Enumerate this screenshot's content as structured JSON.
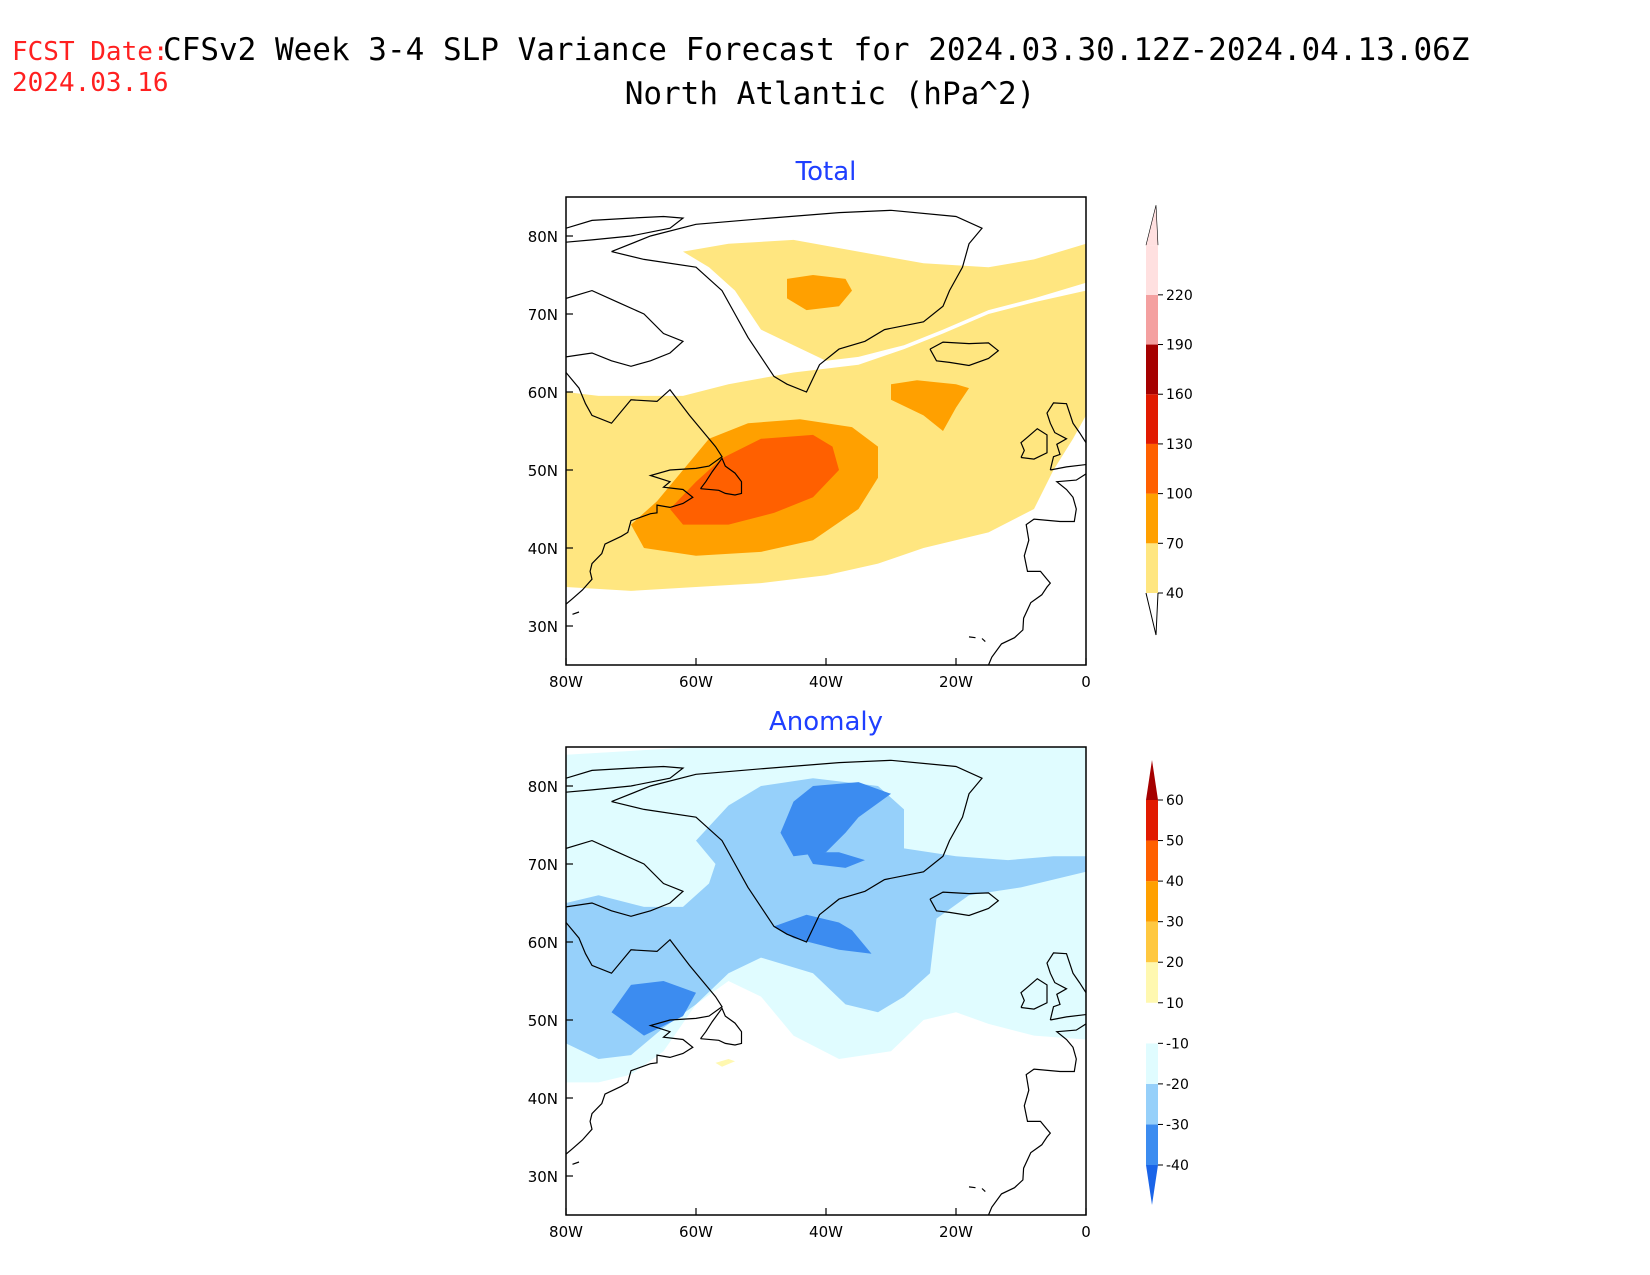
{
  "header": {
    "fcst_label": "FCST Date:",
    "fcst_date": "2024.03.16",
    "title": "CFSv2 Week 3-4 SLP Variance Forecast for 2024.03.30.12Z-2024.04.13.06Z",
    "subtitle": "North Atlantic (hPa^2)"
  },
  "colors": {
    "red_text": "#ff2020",
    "panel_title": "#1f3fff",
    "coast": "#000000"
  },
  "axes": {
    "lon_labels": [
      "80W",
      "60W",
      "40W",
      "20W",
      "0"
    ],
    "lon_values": [
      -80,
      -60,
      -40,
      -20,
      0
    ],
    "lat_labels": [
      "80N",
      "70N",
      "60N",
      "50N",
      "40N",
      "30N"
    ],
    "lat_values": [
      80,
      70,
      60,
      50,
      40,
      30
    ],
    "lon_range": [
      -80,
      0
    ],
    "lat_range": [
      25,
      85
    ]
  },
  "panels": [
    {
      "id": "total",
      "title": "Total",
      "colorbar": {
        "levels": [
          "40",
          "70",
          "100",
          "130",
          "160",
          "190",
          "220"
        ],
        "colors": [
          "#ffe680",
          "#ffa000",
          "#ff6000",
          "#e11a00",
          "#a50000",
          "#f4a0a0",
          "#ffe0e0"
        ]
      },
      "fields": [
        {
          "level": 40,
          "color": "#ffe680",
          "points": [
            [
              -80,
              60
            ],
            [
              -75,
              59.5
            ],
            [
              -70,
              59.5
            ],
            [
              -62,
              59.5
            ],
            [
              -55,
              61
            ],
            [
              -45,
              62.5
            ],
            [
              -40,
              63
            ],
            [
              -35,
              63.5
            ],
            [
              -28,
              65.5
            ],
            [
              -22,
              67.5
            ],
            [
              -15,
              70
            ],
            [
              -8,
              71.5
            ],
            [
              0,
              73
            ],
            [
              0,
              57
            ],
            [
              -2,
              54
            ],
            [
              -5,
              50
            ],
            [
              -8,
              45
            ],
            [
              -15,
              42
            ],
            [
              -25,
              40
            ],
            [
              -32,
              38
            ],
            [
              -40,
              36.5
            ],
            [
              -50,
              35.5
            ],
            [
              -60,
              35
            ],
            [
              -70,
              34.5
            ],
            [
              -80,
              35
            ]
          ]
        },
        {
          "level": 40,
          "color": "#ffe680",
          "points": [
            [
              -62,
              78
            ],
            [
              -55,
              79
            ],
            [
              -45,
              79.5
            ],
            [
              -35,
              78
            ],
            [
              -25,
              76.5
            ],
            [
              -15,
              76
            ],
            [
              -8,
              77
            ],
            [
              0,
              79
            ],
            [
              0,
              74
            ],
            [
              -8,
              72
            ],
            [
              -15,
              70.5
            ],
            [
              -22,
              68
            ],
            [
              -28,
              66
            ],
            [
              -35,
              64.5
            ],
            [
              -40,
              64
            ],
            [
              -45,
              66
            ],
            [
              -50,
              68
            ],
            [
              -54,
              73
            ],
            [
              -58,
              76
            ]
          ]
        },
        {
          "level": 70,
          "color": "#ffa000",
          "points": [
            [
              -70,
              43
            ],
            [
              -66,
              46
            ],
            [
              -62,
              50
            ],
            [
              -58,
              54
            ],
            [
              -52,
              56
            ],
            [
              -44,
              56.5
            ],
            [
              -36,
              55.5
            ],
            [
              -32,
              53
            ],
            [
              -32,
              49
            ],
            [
              -35,
              45
            ],
            [
              -42,
              41
            ],
            [
              -50,
              39.5
            ],
            [
              -60,
              39
            ],
            [
              -68,
              40
            ]
          ]
        },
        {
          "level": 70,
          "color": "#ffa000",
          "points": [
            [
              -46,
              74.5
            ],
            [
              -42,
              75
            ],
            [
              -37,
              74.5
            ],
            [
              -36,
              73
            ],
            [
              -38,
              71
            ],
            [
              -43,
              70.5
            ],
            [
              -46,
              72
            ]
          ]
        },
        {
          "level": 70,
          "color": "#ffa000",
          "points": [
            [
              -30,
              61
            ],
            [
              -26,
              61.5
            ],
            [
              -20,
              61
            ],
            [
              -18,
              60.5
            ],
            [
              -20,
              58
            ],
            [
              -22,
              55
            ],
            [
              -25,
              57
            ],
            [
              -30,
              59
            ]
          ]
        },
        {
          "level": 100,
          "color": "#ff6000",
          "points": [
            [
              -64,
              45
            ],
            [
              -60,
              48.5
            ],
            [
              -56,
              51.5
            ],
            [
              -50,
              54
            ],
            [
              -42,
              54.5
            ],
            [
              -39,
              53
            ],
            [
              -38,
              50
            ],
            [
              -42,
              46.5
            ],
            [
              -48,
              44.5
            ],
            [
              -55,
              43
            ],
            [
              -62,
              43
            ]
          ]
        }
      ]
    },
    {
      "id": "anomaly",
      "title": "Anomaly",
      "colorbar": {
        "levels": [
          "-40",
          "-30",
          "-20",
          "-10",
          "10",
          "20",
          "30",
          "40",
          "50",
          "60"
        ],
        "colors": [
          "#1a64e8",
          "#3c8cf0",
          "#96d0fa",
          "#e0fcff",
          "#ffffff",
          "#fff8b0",
          "#ffc840",
          "#ffa000",
          "#ff6000",
          "#e11a00",
          "#a50000"
        ]
      },
      "fields": [
        {
          "level": -10,
          "color": "#e0fcff",
          "points": [
            [
              -80,
              84
            ],
            [
              -60,
              85
            ],
            [
              -40,
              85
            ],
            [
              -20,
              85
            ],
            [
              0,
              85
            ],
            [
              0,
              47.5
            ],
            [
              -8,
              48
            ],
            [
              -15,
              49.5
            ],
            [
              -20,
              51
            ],
            [
              -25,
              50
            ],
            [
              -30,
              46
            ],
            [
              -38,
              45
            ],
            [
              -45,
              48
            ],
            [
              -50,
              53
            ],
            [
              -55,
              55
            ],
            [
              -60,
              52
            ],
            [
              -65,
              46
            ],
            [
              -70,
              43
            ],
            [
              -75,
              42
            ],
            [
              -80,
              42
            ]
          ]
        },
        {
          "level": -20,
          "color": "#96d0fa",
          "points": [
            [
              -80,
              65
            ],
            [
              -75,
              66
            ],
            [
              -68,
              64.5
            ],
            [
              -62,
              64.5
            ],
            [
              -58,
              67.5
            ],
            [
              -57,
              70
            ],
            [
              -60,
              73
            ],
            [
              -55,
              77.5
            ],
            [
              -50,
              80
            ],
            [
              -42,
              81
            ],
            [
              -32,
              80
            ],
            [
              -28,
              77
            ],
            [
              -28,
              72
            ],
            [
              -20,
              71
            ],
            [
              -12,
              70.5
            ],
            [
              -5,
              71
            ],
            [
              0,
              71
            ],
            [
              0,
              69
            ],
            [
              -10,
              67
            ],
            [
              -18,
              66
            ],
            [
              -23,
              63
            ],
            [
              -24,
              56
            ],
            [
              -28,
              53
            ],
            [
              -32,
              51
            ],
            [
              -37,
              52
            ],
            [
              -42,
              56
            ],
            [
              -50,
              58
            ],
            [
              -55,
              56
            ],
            [
              -60,
              52
            ],
            [
              -65,
              49
            ],
            [
              -70,
              45.5
            ],
            [
              -75,
              45
            ],
            [
              -80,
              47
            ]
          ]
        },
        {
          "level": -30,
          "color": "#3c8cf0",
          "points": [
            [
              -73,
              51
            ],
            [
              -70,
              54.5
            ],
            [
              -65,
              55
            ],
            [
              -60,
              53.5
            ],
            [
              -62,
              50.5
            ],
            [
              -68,
              48
            ]
          ]
        },
        {
          "level": -30,
          "color": "#3c8cf0",
          "points": [
            [
              -45,
              78
            ],
            [
              -42,
              80
            ],
            [
              -35,
              80.5
            ],
            [
              -30,
              79
            ],
            [
              -35,
              76
            ],
            [
              -37,
              74
            ],
            [
              -40,
              71.5
            ],
            [
              -45,
              71
            ],
            [
              -47,
              74
            ],
            [
              -46,
              76
            ]
          ]
        },
        {
          "level": -30,
          "color": "#3c8cf0",
          "points": [
            [
              -43,
              71.5
            ],
            [
              -38,
              71.5
            ],
            [
              -34,
              70.5
            ],
            [
              -37,
              69.5
            ],
            [
              -42,
              70
            ]
          ]
        },
        {
          "level": -30,
          "color": "#3c8cf0",
          "points": [
            [
              -48,
              62
            ],
            [
              -43,
              63.5
            ],
            [
              -38,
              62.5
            ],
            [
              -36,
              61.5
            ],
            [
              -33,
              58.5
            ],
            [
              -38,
              59
            ],
            [
              -45,
              60.5
            ]
          ]
        },
        {
          "level": 10,
          "color": "#fff8b0",
          "points": [
            [
              -57,
              44.5
            ],
            [
              -55,
              45
            ],
            [
              -54,
              44.7
            ],
            [
              -56,
              44
            ]
          ]
        }
      ]
    }
  ]
}
